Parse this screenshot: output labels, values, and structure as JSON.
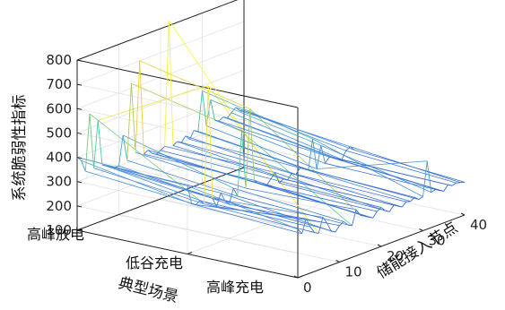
{
  "chart_data": {
    "type": "surface3d",
    "title": "",
    "xlabel": "储能接入节点",
    "ylabel": "典型场景",
    "zlabel": "系统脆弱性指标",
    "x_ticks": [
      "0",
      "10",
      "20",
      "30",
      "40"
    ],
    "x_range": [
      0,
      40
    ],
    "z_ticks": [
      "100",
      "200",
      "300",
      "400",
      "500",
      "600",
      "700",
      "800"
    ],
    "z_range": [
      100,
      800
    ],
    "grid": true,
    "categories": [
      "高峰充电",
      "低谷充电",
      "高峰放电"
    ],
    "series": [
      {
        "values": [
          [
            300,
            275,
            330,
            290,
            260,
            250,
            310,
            280,
            240,
            230,
            250,
            260,
            240,
            230,
            290,
            260,
            250,
            240,
            230,
            250,
            260,
            240,
            230,
            250,
            240,
            230,
            245,
            240,
            250,
            235,
            240,
            380,
            245,
            250,
            240,
            230,
            250,
            240,
            245,
            240,
            235
          ],
          [
            380,
            300,
            290,
            300,
            280,
            760,
            290,
            250,
            300,
            260,
            240,
            300,
            260,
            520,
            280,
            600,
            300,
            280,
            270,
            260,
            280,
            300,
            250,
            260,
            250,
            270,
            260,
            280,
            270,
            260,
            380,
            250,
            340,
            260,
            280,
            270,
            260,
            250,
            280,
            290,
            270
          ],
          [
            400,
            380,
            330,
            560,
            330,
            520,
            330,
            320,
            310,
            300,
            300,
            420,
            310,
            620,
            330,
            700,
            310,
            320,
            300,
            290,
            300,
            310,
            820,
            300,
            310,
            300,
            320,
            300,
            330,
            320,
            480,
            330,
            430,
            340,
            330,
            340,
            330,
            345,
            360,
            340,
            335
          ]
        ]
      }
    ]
  }
}
